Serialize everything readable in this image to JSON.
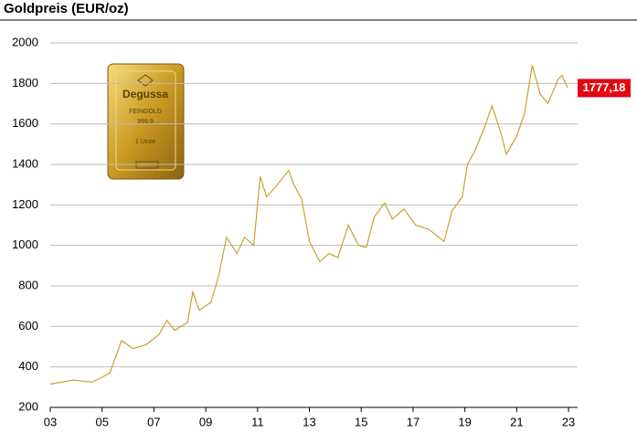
{
  "chart_data": {
    "type": "line",
    "title": "Goldpreis (EUR/oz)",
    "series": [
      {
        "name": "Goldpreis",
        "color": "#c8a22c",
        "x": [
          2003.0,
          2003.9,
          2004.6,
          2004.94,
          2005.3,
          2005.75,
          2006.2,
          2006.7,
          2007.2,
          2007.5,
          2007.8,
          2008.3,
          2008.5,
          2008.75,
          2009.2,
          2009.5,
          2009.8,
          2010.2,
          2010.5,
          2010.85,
          2011.1,
          2011.35,
          2011.7,
          2012.2,
          2012.4,
          2012.7,
          2013.0,
          2013.4,
          2013.75,
          2014.1,
          2014.5,
          2014.9,
          2015.2,
          2015.5,
          2015.9,
          2016.2,
          2016.65,
          2017.1,
          2017.6,
          2018.2,
          2018.5,
          2018.9,
          2019.1,
          2019.4,
          2019.75,
          2020.05,
          2020.4,
          2020.6,
          2021.0,
          2021.3,
          2021.6,
          2021.9,
          2022.2,
          2022.6,
          2022.75,
          2022.97
        ],
        "values": [
          315,
          335,
          325,
          345,
          370,
          530,
          490,
          510,
          560,
          630,
          580,
          620,
          770,
          680,
          720,
          850,
          1040,
          960,
          1040,
          1000,
          1340,
          1240,
          1290,
          1370,
          1300,
          1230,
          1020,
          920,
          960,
          940,
          1100,
          1000,
          990,
          1140,
          1210,
          1130,
          1180,
          1100,
          1080,
          1020,
          1170,
          1240,
          1400,
          1470,
          1580,
          1690,
          1550,
          1450,
          1540,
          1650,
          1890,
          1750,
          1700,
          1820,
          1840,
          1777.18
        ]
      }
    ],
    "end_label": {
      "value": 1777.18,
      "label": "1777,18"
    },
    "image_texts": [
      "Degussa",
      "FEINGOLD",
      "999,9",
      "1 Unze"
    ],
    "xlim": [
      2003,
      2023.35
    ],
    "xticks": [
      {
        "value": 2003,
        "label": "03"
      },
      {
        "value": 2005,
        "label": "05"
      },
      {
        "value": 2007,
        "label": "07"
      },
      {
        "value": 2009,
        "label": "09"
      },
      {
        "value": 2011,
        "label": "11"
      },
      {
        "value": 2013,
        "label": "13"
      },
      {
        "value": 2015,
        "label": "15"
      },
      {
        "value": 2017,
        "label": "17"
      },
      {
        "value": 2019,
        "label": "19"
      },
      {
        "value": 2021,
        "label": "21"
      },
      {
        "value": 2023,
        "label": "23"
      }
    ],
    "ylim": [
      200,
      2000
    ],
    "yticks": [
      200,
      400,
      600,
      800,
      1000,
      1200,
      1400,
      1600,
      1800,
      2000
    ],
    "grid": true
  }
}
